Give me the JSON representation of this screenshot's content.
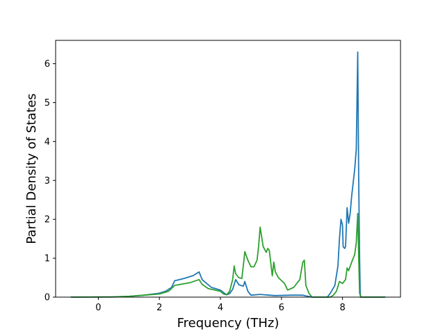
{
  "chart_data": {
    "type": "line",
    "title": "",
    "xlabel": "Frequency (THz)",
    "ylabel": "Partial Density of States",
    "xlim": [
      -1.4,
      9.9
    ],
    "ylim": [
      0,
      6.6
    ],
    "xticks": [
      0,
      2,
      4,
      6,
      8
    ],
    "yticks": [
      0,
      1,
      2,
      3,
      4,
      5,
      6
    ],
    "grid": false,
    "legend": "none",
    "series": [
      {
        "color": "#1f77b4",
        "points": [
          [
            -0.9,
            0
          ],
          [
            0.5,
            0.005
          ],
          [
            1.0,
            0.02
          ],
          [
            1.5,
            0.05
          ],
          [
            2.0,
            0.1
          ],
          [
            2.2,
            0.15
          ],
          [
            2.4,
            0.25
          ],
          [
            2.5,
            0.42
          ],
          [
            2.8,
            0.48
          ],
          [
            3.1,
            0.55
          ],
          [
            3.3,
            0.65
          ],
          [
            3.4,
            0.45
          ],
          [
            3.7,
            0.25
          ],
          [
            4.0,
            0.18
          ],
          [
            4.1,
            0.12
          ],
          [
            4.2,
            0.06
          ],
          [
            4.3,
            0.09
          ],
          [
            4.4,
            0.2
          ],
          [
            4.5,
            0.45
          ],
          [
            4.6,
            0.32
          ],
          [
            4.75,
            0.28
          ],
          [
            4.8,
            0.4
          ],
          [
            4.9,
            0.15
          ],
          [
            5.0,
            0.05
          ],
          [
            5.3,
            0.07
          ],
          [
            5.6,
            0.05
          ],
          [
            5.8,
            0.04
          ],
          [
            6.3,
            0.05
          ],
          [
            6.7,
            0.05
          ],
          [
            6.8,
            0.03
          ],
          [
            7.0,
            0.0
          ],
          [
            7.5,
            0.0
          ],
          [
            7.6,
            0.1
          ],
          [
            7.75,
            0.3
          ],
          [
            7.85,
            0.8
          ],
          [
            7.9,
            1.5
          ],
          [
            7.95,
            2.0
          ],
          [
            8.0,
            1.85
          ],
          [
            8.02,
            1.3
          ],
          [
            8.07,
            1.25
          ],
          [
            8.1,
            1.3
          ],
          [
            8.15,
            2.3
          ],
          [
            8.2,
            1.9
          ],
          [
            8.25,
            2.15
          ],
          [
            8.3,
            2.6
          ],
          [
            8.4,
            3.3
          ],
          [
            8.45,
            3.8
          ],
          [
            8.5,
            6.3
          ],
          [
            8.53,
            3.0
          ],
          [
            8.56,
            1.0
          ],
          [
            8.58,
            0.1
          ],
          [
            8.6,
            0.0
          ],
          [
            9.4,
            0.0
          ]
        ]
      },
      {
        "color": "#2ca02c",
        "points": [
          [
            -0.9,
            0
          ],
          [
            0.5,
            0.005
          ],
          [
            1.0,
            0.02
          ],
          [
            1.5,
            0.05
          ],
          [
            2.0,
            0.08
          ],
          [
            2.3,
            0.15
          ],
          [
            2.5,
            0.3
          ],
          [
            3.0,
            0.37
          ],
          [
            3.3,
            0.45
          ],
          [
            3.4,
            0.33
          ],
          [
            3.6,
            0.22
          ],
          [
            4.0,
            0.15
          ],
          [
            4.1,
            0.08
          ],
          [
            4.2,
            0.06
          ],
          [
            4.3,
            0.15
          ],
          [
            4.4,
            0.45
          ],
          [
            4.45,
            0.8
          ],
          [
            4.5,
            0.6
          ],
          [
            4.6,
            0.5
          ],
          [
            4.7,
            0.48
          ],
          [
            4.75,
            0.8
          ],
          [
            4.8,
            1.17
          ],
          [
            4.9,
            0.95
          ],
          [
            5.0,
            0.78
          ],
          [
            5.1,
            0.78
          ],
          [
            5.2,
            0.95
          ],
          [
            5.25,
            1.3
          ],
          [
            5.3,
            1.8
          ],
          [
            5.4,
            1.3
          ],
          [
            5.5,
            1.15
          ],
          [
            5.55,
            1.25
          ],
          [
            5.6,
            1.2
          ],
          [
            5.7,
            0.55
          ],
          [
            5.75,
            0.9
          ],
          [
            5.8,
            0.65
          ],
          [
            5.9,
            0.5
          ],
          [
            6.1,
            0.35
          ],
          [
            6.2,
            0.18
          ],
          [
            6.4,
            0.25
          ],
          [
            6.6,
            0.45
          ],
          [
            6.7,
            0.9
          ],
          [
            6.75,
            0.95
          ],
          [
            6.8,
            0.3
          ],
          [
            6.9,
            0.1
          ],
          [
            7.0,
            0.0
          ],
          [
            7.6,
            0.0
          ],
          [
            7.7,
            0.05
          ],
          [
            7.8,
            0.15
          ],
          [
            7.9,
            0.4
          ],
          [
            8.0,
            0.35
          ],
          [
            8.1,
            0.45
          ],
          [
            8.15,
            0.75
          ],
          [
            8.2,
            0.68
          ],
          [
            8.3,
            0.9
          ],
          [
            8.4,
            1.1
          ],
          [
            8.45,
            1.4
          ],
          [
            8.5,
            2.15
          ],
          [
            8.53,
            1.0
          ],
          [
            8.56,
            0.1
          ],
          [
            8.6,
            0.0
          ],
          [
            9.4,
            0.0
          ]
        ]
      }
    ]
  }
}
